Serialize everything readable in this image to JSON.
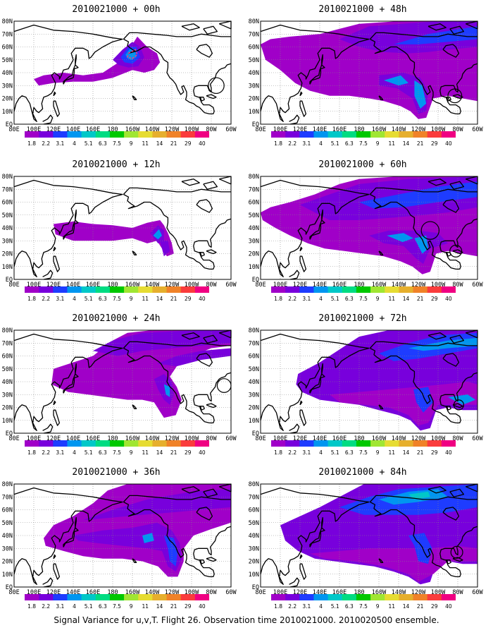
{
  "panels": [
    {
      "title": "2010021000 + 00h"
    },
    {
      "title": "2010021000 + 48h"
    },
    {
      "title": "2010021000 + 12h"
    },
    {
      "title": "2010021000 + 60h"
    },
    {
      "title": "2010021000 + 24h"
    },
    {
      "title": "2010021000 + 72h"
    },
    {
      "title": "2010021000 + 36h"
    },
    {
      "title": "2010021000 + 84h"
    }
  ],
  "lon_labels": [
    "80E",
    "100E",
    "120E",
    "140E",
    "160E",
    "180",
    "160W",
    "140W",
    "120W",
    "100W",
    "80W",
    "60W"
  ],
  "lat_labels": [
    "80N",
    "70N",
    "60N",
    "50N",
    "40N",
    "30N",
    "20N",
    "10N",
    "EQ"
  ],
  "colorbar": {
    "levels": [
      "1.8",
      "2.2",
      "3.1",
      "4",
      "5.1",
      "6.3",
      "7.5",
      "9",
      "11",
      "14",
      "21",
      "29",
      "40"
    ],
    "colors": [
      "#a000c8",
      "#7800dc",
      "#1e3cff",
      "#0096f0",
      "#00c8c8",
      "#00dc82",
      "#00c800",
      "#a0e632",
      "#e6dc32",
      "#e6af2d",
      "#f08228",
      "#fa3c3c",
      "#f00082"
    ]
  },
  "caption": "Signal Variance for u,v,T. Flight 26. Observation time 2010021000. 2010020500 ensemble."
}
